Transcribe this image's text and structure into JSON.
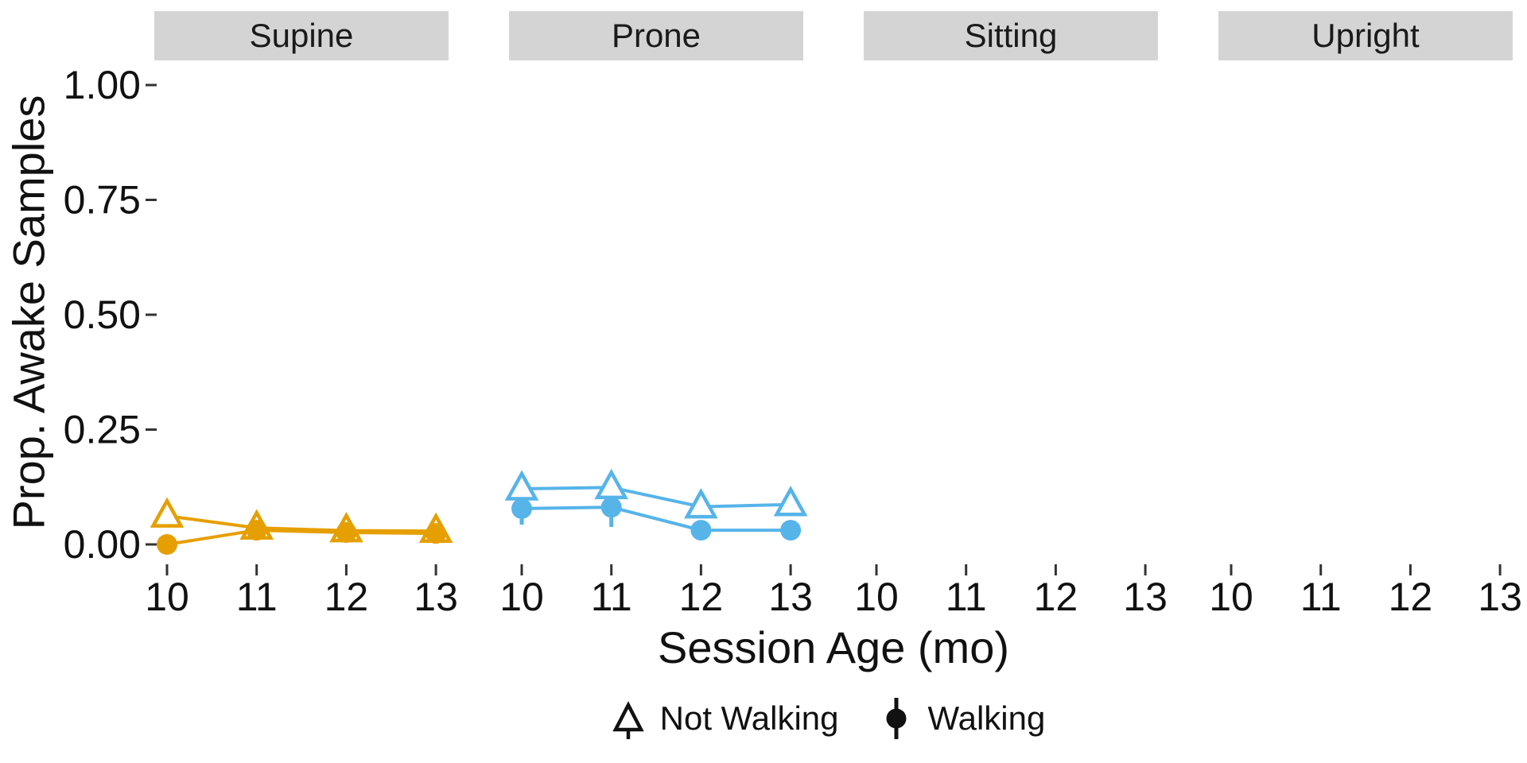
{
  "chart_data": {
    "type": "line",
    "title": "",
    "xlabel": "Session Age (mo)",
    "ylabel": "Prop. Awake Samples",
    "x_ticks": [
      10,
      11,
      12,
      13
    ],
    "y_tick_values": [
      0,
      0.25,
      0.5,
      0.75,
      1.0
    ],
    "y_tick_labels": [
      "0.00",
      "0.25",
      "0.50",
      "0.75",
      "1.00"
    ],
    "ylim": [
      0,
      1
    ],
    "grid": "off",
    "legend_position": "bottom",
    "facets": [
      {
        "label": "Supine",
        "color": "#E69F00",
        "series": [
          {
            "name": "Not Walking",
            "marker": "open-triangle",
            "x": [
              10,
              11,
              12,
              13
            ],
            "y": [
              0.062,
              0.036,
              0.03,
              0.029
            ]
          },
          {
            "name": "Walking",
            "marker": "filled-circle",
            "x": [
              10,
              11,
              12,
              13
            ],
            "y": [
              0.0,
              0.031,
              0.026,
              0.024
            ]
          }
        ],
        "error_bars": []
      },
      {
        "label": "Prone",
        "color": "#56B4E9",
        "series": [
          {
            "name": "Not Walking",
            "marker": "open-triangle",
            "x": [
              10,
              11,
              12,
              13
            ],
            "y": [
              0.121,
              0.124,
              0.082,
              0.087
            ]
          },
          {
            "name": "Walking",
            "marker": "filled-circle",
            "x": [
              10,
              11,
              12,
              13
            ],
            "y": [
              0.078,
              0.081,
              0.031,
              0.031
            ]
          }
        ],
        "error_bars": [
          {
            "series": "Walking",
            "x": 10,
            "low": 0.043,
            "high": 0.108
          },
          {
            "series": "Walking",
            "x": 11,
            "low": 0.038,
            "high": 0.124
          }
        ]
      },
      {
        "label": "Sitting",
        "color": "#999999",
        "series": [],
        "error_bars": []
      },
      {
        "label": "Upright",
        "color": "#999999",
        "series": [],
        "error_bars": []
      }
    ],
    "legend": [
      {
        "label": "Not Walking",
        "marker": "open-triangle"
      },
      {
        "label": "Walking",
        "marker": "filled-circle"
      }
    ]
  },
  "colors": {
    "not_walking_supine_orange": "#E69F00",
    "prone_sky_blue": "#56B4E9",
    "strip_background": "#D4D4D4",
    "tick_mark": "#333333",
    "axis_text": "#111111"
  }
}
